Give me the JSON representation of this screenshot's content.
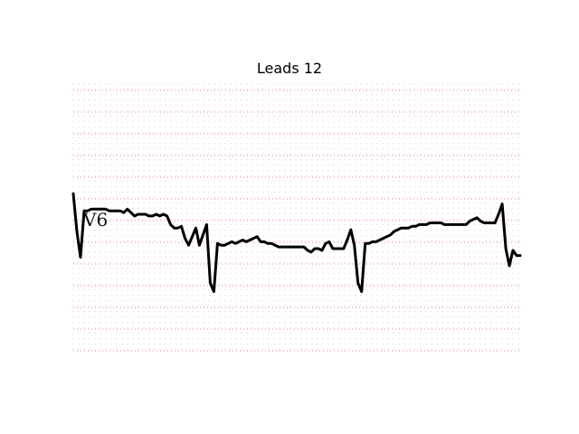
{
  "chart_data": {
    "type": "line",
    "title": "Leads 12",
    "xlabel": "",
    "ylabel": "",
    "grid": true,
    "lead_label": "V6",
    "x": [
      0,
      4,
      8,
      12,
      16,
      20,
      24,
      28,
      32,
      36,
      40,
      44,
      48,
      52,
      56,
      60,
      64,
      68,
      72,
      76,
      80,
      84,
      88,
      92,
      96,
      100,
      104,
      108,
      112,
      116,
      120,
      124,
      128,
      132,
      136,
      140,
      144,
      148,
      152,
      156,
      160,
      164,
      168,
      172,
      176,
      180,
      184,
      188,
      192,
      196,
      200,
      204,
      208,
      212,
      216,
      220,
      224,
      228,
      232,
      236,
      240,
      244,
      248,
      252,
      256,
      260,
      264,
      268,
      272,
      276,
      280,
      284,
      288,
      292,
      296,
      300,
      304,
      308,
      312,
      316,
      320,
      324,
      328,
      332,
      336,
      340,
      344,
      348,
      352,
      356,
      360,
      364,
      368,
      372,
      376,
      380,
      384,
      388,
      392,
      396,
      400,
      404,
      408,
      412,
      416,
      420,
      424,
      428,
      432,
      436,
      440,
      444,
      448,
      452,
      456,
      460,
      464,
      468,
      472,
      476,
      480,
      484,
      488,
      492,
      496
    ],
    "values": [
      0.12,
      -0.1,
      -0.25,
      0.02,
      0.02,
      0.03,
      0.03,
      0.03,
      0.03,
      0.03,
      0.02,
      0.02,
      0.02,
      0.02,
      0.01,
      0.03,
      0.01,
      -0.01,
      0.0,
      0.0,
      0.0,
      -0.01,
      -0.01,
      0.0,
      -0.01,
      0.0,
      -0.01,
      -0.06,
      -0.08,
      -0.08,
      -0.07,
      -0.14,
      -0.18,
      -0.13,
      -0.08,
      -0.18,
      -0.12,
      -0.06,
      -0.4,
      -0.45,
      -0.17,
      -0.18,
      -0.18,
      -0.17,
      -0.16,
      -0.17,
      -0.16,
      -0.15,
      -0.16,
      -0.15,
      -0.14,
      -0.13,
      -0.16,
      -0.16,
      -0.17,
      -0.17,
      -0.18,
      -0.19,
      -0.19,
      -0.19,
      -0.19,
      -0.19,
      -0.19,
      -0.19,
      -0.19,
      -0.21,
      -0.22,
      -0.2,
      -0.2,
      -0.21,
      -0.17,
      -0.16,
      -0.2,
      -0.2,
      -0.2,
      -0.2,
      -0.15,
      -0.09,
      -0.18,
      -0.4,
      -0.45,
      -0.17,
      -0.17,
      -0.16,
      -0.16,
      -0.15,
      -0.14,
      -0.13,
      -0.12,
      -0.1,
      -0.09,
      -0.08,
      -0.08,
      -0.08,
      -0.07,
      -0.07,
      -0.06,
      -0.06,
      -0.06,
      -0.05,
      -0.05,
      -0.05,
      -0.05,
      -0.06,
      -0.06,
      -0.06,
      -0.06,
      -0.06,
      -0.06,
      -0.06,
      -0.04,
      -0.03,
      -0.02,
      -0.04,
      -0.05,
      -0.05,
      -0.05,
      -0.05,
      0.0,
      0.06,
      -0.2,
      -0.3,
      -0.21,
      -0.24,
      -0.24
    ]
  }
}
